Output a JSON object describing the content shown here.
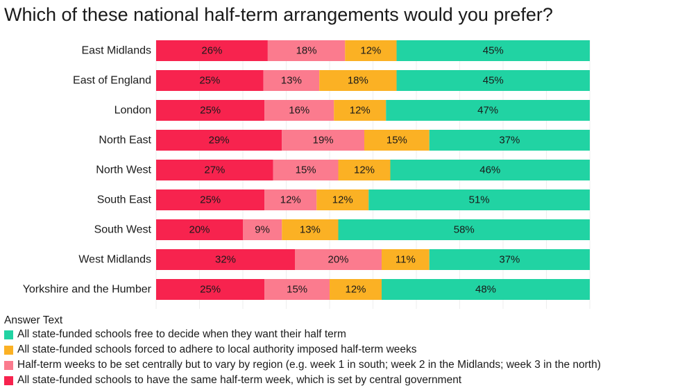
{
  "chart_data": {
    "type": "bar",
    "orientation": "horizontal",
    "stacked": true,
    "title": "Which of these national half-term arrangements would you prefer?",
    "legend_title": "Answer Text",
    "categories": [
      "East Midlands",
      "East of England",
      "London",
      "North East",
      "North West",
      "South East",
      "South West",
      "West Midlands",
      "Yorkshire and the Humber"
    ],
    "series": [
      {
        "name": "All state-funded schools to have the same half-term week, which is set by central government",
        "color": "#f7234e",
        "values": [
          26,
          25,
          25,
          29,
          27,
          25,
          20,
          32,
          25
        ]
      },
      {
        "name": "Half-term weeks to be set centrally but to vary by region (e.g. week 1 in south; week 2 in the Midlands; week 3 in the north)",
        "color": "#fb7b8e",
        "values": [
          18,
          13,
          16,
          19,
          15,
          12,
          9,
          20,
          15
        ]
      },
      {
        "name": "All state-funded schools forced to adhere to local authority imposed half-term weeks",
        "color": "#fbb124",
        "values": [
          12,
          18,
          12,
          15,
          12,
          12,
          13,
          11,
          12
        ]
      },
      {
        "name": "All state-funded schools free to decide when they want their half term",
        "color": "#21d3a3",
        "values": [
          45,
          45,
          47,
          37,
          46,
          51,
          58,
          37,
          48
        ]
      }
    ],
    "legend_order": [
      3,
      2,
      1,
      0
    ],
    "value_suffix": "%",
    "grid": true,
    "legend_position": "bottom-left"
  }
}
